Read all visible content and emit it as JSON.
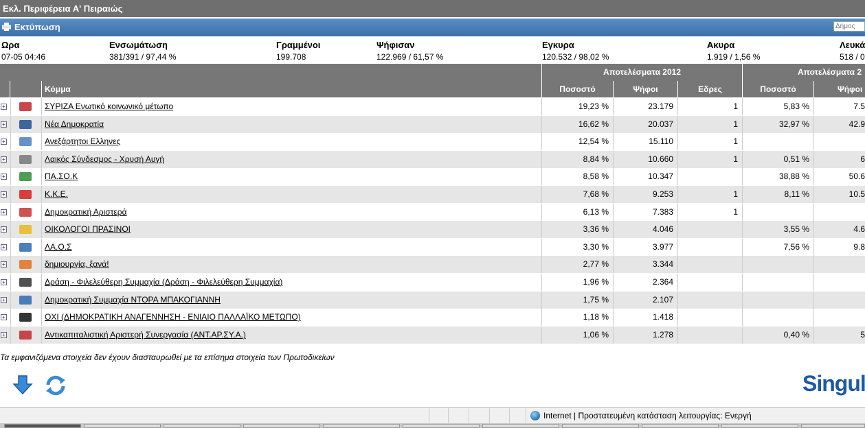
{
  "window": {
    "title": "Εκλ. Περιφέρεια Α' Πειραιώς"
  },
  "printbar": {
    "label": "Εκτύπωση",
    "search_placeholder": "Δήμος"
  },
  "summary": {
    "headers": [
      "Ωρα",
      "Ενσωμάτωση",
      "Γραμμένοι",
      "Ψήφισαν",
      "Εγκυρα",
      "Ακυρα",
      "Λευκά"
    ],
    "values": [
      "07-05 04:46",
      "381/391 / 97,44 %",
      "199.708",
      "122.969 / 61,57 %",
      "120.532 / 98,02 %",
      "1.919 / 1,56 %",
      "518 / 0"
    ]
  },
  "results": {
    "group1": "Αποτελέσματα 2012",
    "group2": "Αποτελέσματα 2"
  },
  "columns": {
    "party": "Κόμμα",
    "pct": "Ποσοστό",
    "votes": "Ψήφοι",
    "seats": "Εδρες",
    "pct_prev": "Ποσοστό",
    "votes_prev": "Ψήφοι"
  },
  "parties": [
    {
      "name": "ΣΥΡΙΖΑ Ενωτικό κοινωνικό μέτωπο",
      "pct": "19,23 %",
      "votes": "23.179",
      "seats": "1",
      "pct_prev": "5,83 %",
      "votes_prev": "7.5",
      "logo_color": "#c0282d"
    },
    {
      "name": "Νέα Δημοκρατία",
      "pct": "16,62 %",
      "votes": "20.037",
      "seats": "1",
      "pct_prev": "32,97 %",
      "votes_prev": "42.9",
      "logo_color": "#1f4e8c"
    },
    {
      "name": "Ανεξάρτητοι Ελληνες",
      "pct": "12,54 %",
      "votes": "15.110",
      "seats": "1",
      "pct_prev": "",
      "votes_prev": "",
      "logo_color": "#4a7fc0"
    },
    {
      "name": "Λαικός Σύνδεσμος - Χρυσή Αυγή",
      "pct": "8,84 %",
      "votes": "10.660",
      "seats": "1",
      "pct_prev": "0,51 %",
      "votes_prev": "6",
      "logo_color": "#777777"
    },
    {
      "name": "ΠΑ.ΣΟ.Κ",
      "pct": "8,58 %",
      "votes": "10.347",
      "seats": "",
      "pct_prev": "38,88 %",
      "votes_prev": "50.6",
      "logo_color": "#2e8b3a"
    },
    {
      "name": "Κ.Κ.Ε.",
      "pct": "7,68 %",
      "votes": "9.253",
      "seats": "1",
      "pct_prev": "8,11 %",
      "votes_prev": "10.5",
      "logo_color": "#d42020"
    },
    {
      "name": "Δημοκρατική Αριστερά",
      "pct": "6,13 %",
      "votes": "7.383",
      "seats": "1",
      "pct_prev": "",
      "votes_prev": "",
      "logo_color": "#c83232"
    },
    {
      "name": "ΟΙΚΟΛΟΓΟΙ ΠΡΑΣΙΝΟΙ",
      "pct": "3,36 %",
      "votes": "4.046",
      "seats": "",
      "pct_prev": "3,55 %",
      "votes_prev": "4.6",
      "logo_color": "#e8b81a"
    },
    {
      "name": "ΛΑ.Ο.Σ",
      "pct": "3,30 %",
      "votes": "3.977",
      "seats": "",
      "pct_prev": "7,56 %",
      "votes_prev": "9.8",
      "logo_color": "#2a6ab0"
    },
    {
      "name": "δημιουργία, ξανά!",
      "pct": "2,77 %",
      "votes": "3.344",
      "seats": "",
      "pct_prev": "",
      "votes_prev": "",
      "logo_color": "#e07020"
    },
    {
      "name": "Δράση - Φιλελεύθερη Συμμαχία (Δράση - Φιλελεύθερη Συμμαχία)",
      "pct": "1,96 %",
      "votes": "2.364",
      "seats": "",
      "pct_prev": "",
      "votes_prev": "",
      "logo_color": "#333333"
    },
    {
      "name": "Δημοκρατική Συμμαχία ΝΤΟΡΑ ΜΠΑΚΟΓΙΑΝΝΗ",
      "pct": "1,75 %",
      "votes": "2.107",
      "seats": "",
      "pct_prev": "",
      "votes_prev": "",
      "logo_color": "#2a6ab0"
    },
    {
      "name": "ΟΧΙ (ΔΗΜΟΚΡΑΤΙΚΗ ΑΝΑΓΕΝΝΗΣΗ - ΕΝΙΑΙΟ ΠΑΛΛΑΪΚΟ ΜΕΤΩΠΟ)",
      "pct": "1,18 %",
      "votes": "1.418",
      "seats": "",
      "pct_prev": "",
      "votes_prev": "",
      "logo_color": "#111111"
    },
    {
      "name": "Αντικαπιταλιστική Αριστερή Συνεργασία (ΑΝΤ.ΑΡ.ΣΥ.Α.)",
      "pct": "1,06 %",
      "votes": "1.278",
      "seats": "",
      "pct_prev": "0,40 %",
      "votes_prev": "5",
      "logo_color": "#c0282d"
    }
  ],
  "disclaimer": "Τα εμφανιζόμενα στοιχεία δεν έχουν διασταυρωθεί με τα επίσημα στοιχεία των Πρωτοδικείων",
  "brand": "Singul",
  "statusbar": {
    "text": "Internet | Προστατευμένη κατάσταση λειτουργίας: Ενεργή"
  }
}
